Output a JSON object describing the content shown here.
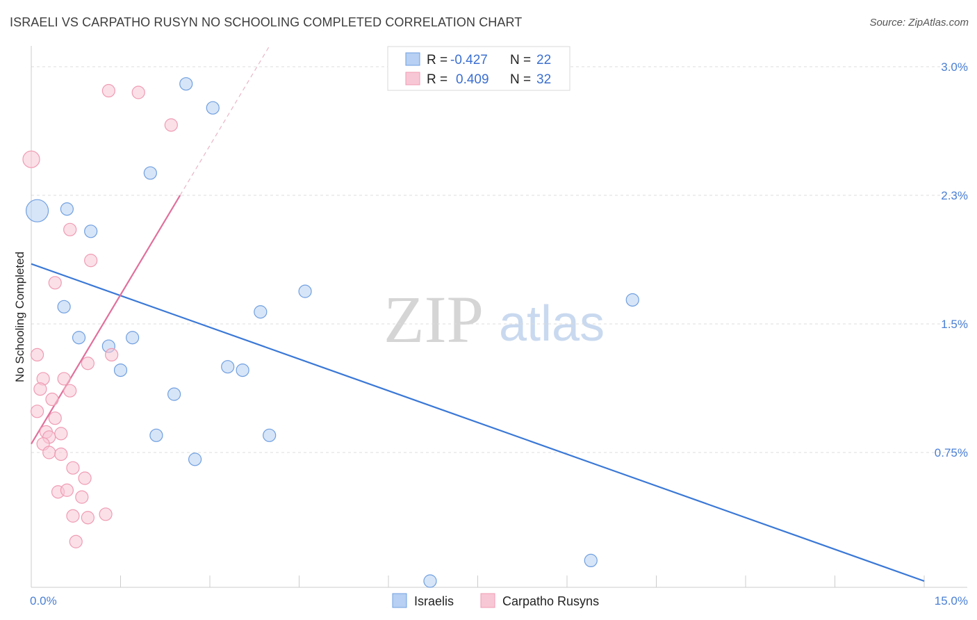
{
  "header": {
    "title": "ISRAELI VS CARPATHO RUSYN NO SCHOOLING COMPLETED CORRELATION CHART",
    "source": "Source: ZipAtlas.com"
  },
  "watermark": {
    "zip": "ZIP",
    "atlas": "atlas"
  },
  "chart_data": {
    "type": "scatter",
    "title": "ISRAELI VS CARPATHO RUSYN NO SCHOOLING COMPLETED CORRELATION CHART",
    "xlabel": "",
    "ylabel": "No Schooling Completed",
    "xlim": [
      0,
      15
    ],
    "ylim": [
      0,
      3.1
    ],
    "x_tick_labels": [
      {
        "value": 0,
        "label": "0.0%"
      },
      {
        "value": 15,
        "label": "15.0%"
      }
    ],
    "x_minor_ticks": [
      0,
      1.5,
      3,
      4.5,
      6,
      7.5,
      9,
      10.5,
      12,
      13.5,
      15
    ],
    "y_tick_labels": [
      {
        "value": 0.75,
        "label": "0.75%"
      },
      {
        "value": 1.5,
        "label": "1.5%"
      },
      {
        "value": 2.25,
        "label": "2.3%"
      },
      {
        "value": 3.0,
        "label": "3.0%"
      }
    ],
    "grid": true,
    "legend_position": "top-center",
    "series": [
      {
        "name": "Israelis",
        "color": "#6f9fe0",
        "fill": "#b7d0f3",
        "line_color": "#3a78d6",
        "R": "-0.427",
        "N": "22",
        "points": [
          [
            0.1,
            2.16,
            16
          ],
          [
            0.6,
            2.17,
            9
          ],
          [
            2.6,
            2.9,
            9
          ],
          [
            3.05,
            2.76,
            9
          ],
          [
            2.0,
            2.38,
            9
          ],
          [
            1.0,
            2.04,
            9
          ],
          [
            0.55,
            1.6,
            9
          ],
          [
            0.8,
            1.42,
            9
          ],
          [
            1.3,
            1.37,
            9
          ],
          [
            1.7,
            1.42,
            9
          ],
          [
            1.5,
            1.23,
            9
          ],
          [
            3.3,
            1.25,
            9
          ],
          [
            3.55,
            1.23,
            9
          ],
          [
            3.85,
            1.57,
            9
          ],
          [
            4.6,
            1.69,
            9
          ],
          [
            10.1,
            1.64,
            9
          ],
          [
            2.4,
            1.09,
            9
          ],
          [
            2.1,
            0.85,
            9
          ],
          [
            4.0,
            0.85,
            9
          ],
          [
            2.75,
            0.71,
            9
          ],
          [
            9.4,
            0.12,
            9
          ],
          [
            6.7,
            0.0,
            9
          ]
        ],
        "trend": {
          "x": [
            0,
            15
          ],
          "y": [
            1.85,
            0.0
          ]
        }
      },
      {
        "name": "Carpatho Rusyns",
        "color": "#ef9bb3",
        "fill": "#f8c7d5",
        "line_color": "#e0709a",
        "R": "0.409",
        "N": "32",
        "points": [
          [
            0.0,
            2.46,
            12
          ],
          [
            1.3,
            2.86,
            9
          ],
          [
            1.8,
            2.85,
            9
          ],
          [
            2.35,
            2.66,
            9
          ],
          [
            0.65,
            2.05,
            9
          ],
          [
            1.0,
            1.87,
            9
          ],
          [
            0.4,
            1.74,
            9
          ],
          [
            0.1,
            1.32,
            9
          ],
          [
            1.35,
            1.32,
            9
          ],
          [
            0.95,
            1.27,
            9
          ],
          [
            0.2,
            1.18,
            9
          ],
          [
            0.55,
            1.18,
            9
          ],
          [
            0.15,
            1.12,
            9
          ],
          [
            0.65,
            1.11,
            9
          ],
          [
            0.35,
            1.06,
            9
          ],
          [
            0.1,
            0.99,
            9
          ],
          [
            0.4,
            0.95,
            9
          ],
          [
            0.25,
            0.87,
            9
          ],
          [
            0.5,
            0.86,
            9
          ],
          [
            0.3,
            0.84,
            9
          ],
          [
            0.2,
            0.8,
            9
          ],
          [
            0.3,
            0.75,
            9
          ],
          [
            0.5,
            0.74,
            9
          ],
          [
            0.7,
            0.66,
            9
          ],
          [
            0.9,
            0.6,
            9
          ],
          [
            0.45,
            0.52,
            9
          ],
          [
            0.6,
            0.53,
            9
          ],
          [
            0.85,
            0.49,
            9
          ],
          [
            1.25,
            0.39,
            9
          ],
          [
            0.7,
            0.38,
            9
          ],
          [
            0.95,
            0.37,
            9
          ],
          [
            0.75,
            0.23,
            9
          ]
        ],
        "trend": {
          "x": [
            0,
            2.5
          ],
          "y": [
            0.8,
            2.25
          ]
        },
        "trend_extension": {
          "x": [
            2.5,
            4.0
          ],
          "y": [
            2.25,
            3.12
          ]
        }
      }
    ]
  },
  "legend": {
    "r_label": "R =",
    "n_label": "N =",
    "rows": [
      {
        "r_value": "-0.427",
        "n_value": "22"
      },
      {
        "r_value": "0.409",
        "n_value": "32"
      }
    ]
  },
  "bottom_legend": [
    "Israelis",
    "Carpatho Rusyns"
  ]
}
